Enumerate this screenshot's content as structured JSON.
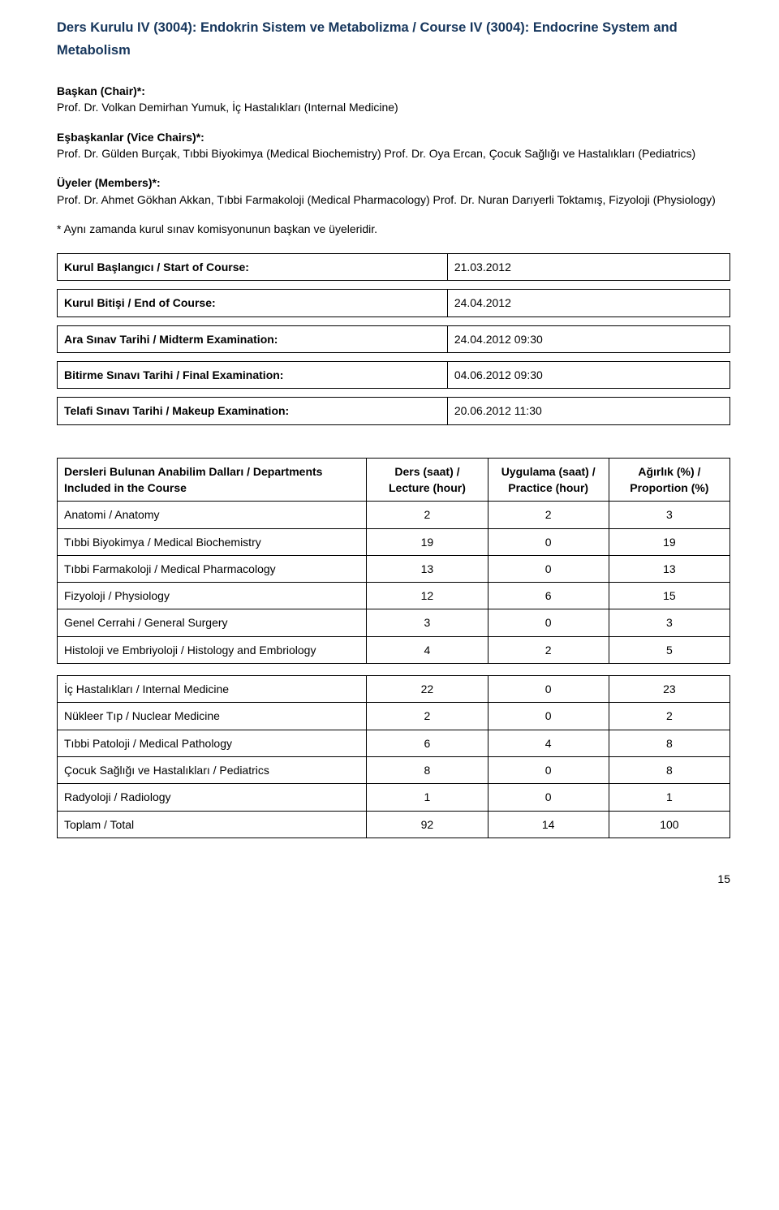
{
  "title": "Ders Kurulu IV (3004): Endokrin Sistem ve Metabolizma / Course IV (3004): Endocrine System and Metabolism",
  "roles": {
    "chair_label": "Başkan (Chair)*:",
    "chair_value": "Prof. Dr. Volkan Demirhan Yumuk, İç Hastalıkları (Internal Medicine)",
    "vice_label": "Eşbaşkanlar (Vice Chairs)*:",
    "vice_value": "Prof. Dr. Gülden Burçak, Tıbbi Biyokimya (Medical Biochemistry) Prof. Dr. Oya Ercan, Çocuk Sağlığı ve Hastalıkları (Pediatrics)",
    "members_label": "Üyeler (Members)*:",
    "members_value": "Prof. Dr. Ahmet Gökhan Akkan, Tıbbi Farmakoloji (Medical Pharmacology) Prof. Dr. Nuran Darıyerli Toktamış, Fizyoloji (Physiology)",
    "note": "* Aynı zamanda kurul sınav komisyonunun başkan ve üyeleridir."
  },
  "kv": [
    {
      "label": "Kurul Başlangıcı / Start of Course:",
      "value": "21.03.2012"
    },
    {
      "label": "Kurul Bitişi / End of Course:",
      "value": "24.04.2012"
    },
    {
      "label": "Ara Sınav Tarihi / Midterm Examination:",
      "value": "24.04.2012 09:30"
    },
    {
      "label": "Bitirme Sınavı Tarihi / Final Examination:",
      "value": "04.06.2012 09:30"
    },
    {
      "label": "Telafi Sınavı Tarihi / Makeup Examination:",
      "value": "20.06.2012 11:30"
    }
  ],
  "table1": {
    "headers": [
      "Dersleri Bulunan Anabilim Dalları / Departments Included in the Course",
      "Ders (saat) / Lecture (hour)",
      "Uygulama (saat) / Practice (hour)",
      "Ağırlık (%) / Proportion (%)"
    ],
    "rows": [
      {
        "dept": "Anatomi / Anatomy",
        "c1": "2",
        "c2": "2",
        "c3": "3",
        "indent": false
      },
      {
        "dept": "Tıbbi Biyokimya / Medical Biochemistry",
        "c1": "19",
        "c2": "0",
        "c3": "19",
        "indent": true
      },
      {
        "dept": "Tıbbi Farmakoloji / Medical Pharmacology",
        "c1": "13",
        "c2": "0",
        "c3": "13",
        "indent": false
      },
      {
        "dept": "Fizyoloji / Physiology",
        "c1": "12",
        "c2": "6",
        "c3": "15",
        "indent": false
      },
      {
        "dept": "Genel Cerrahi / General Surgery",
        "c1": "3",
        "c2": "0",
        "c3": "3",
        "indent": false
      },
      {
        "dept": "Histoloji ve Embriyoloji / Histology and Embriology",
        "c1": "4",
        "c2": "2",
        "c3": "5",
        "indent": false
      }
    ]
  },
  "table2": {
    "rows": [
      {
        "dept": "İç Hastalıkları / Internal Medicine",
        "c1": "22",
        "c2": "0",
        "c3": "23"
      },
      {
        "dept": "Nükleer Tıp / Nuclear Medicine",
        "c1": "2",
        "c2": "0",
        "c3": "2"
      },
      {
        "dept": "Tıbbi Patoloji / Medical Pathology",
        "c1": "6",
        "c2": "4",
        "c3": "8"
      },
      {
        "dept": "Çocuk Sağlığı ve Hastalıkları / Pediatrics",
        "c1": "8",
        "c2": "0",
        "c3": "8"
      },
      {
        "dept": "Radyoloji / Radiology",
        "c1": "1",
        "c2": "0",
        "c3": "1"
      },
      {
        "dept": "Toplam / Total",
        "c1": "92",
        "c2": "14",
        "c3": "100"
      }
    ]
  },
  "colwidths": {
    "c0": "46%",
    "c1": "18%",
    "c2": "18%",
    "c3": "18%"
  },
  "pagenum": "15"
}
